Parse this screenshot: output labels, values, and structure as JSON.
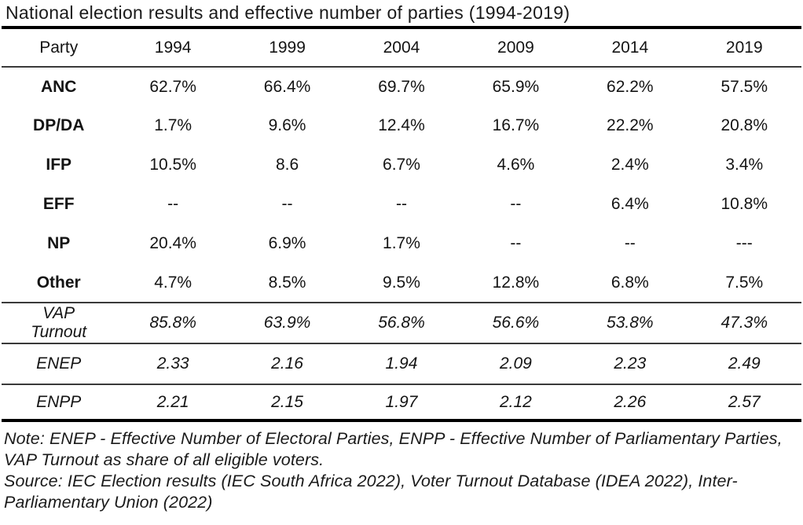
{
  "title": "National election results and effective number of parties (1994-2019)",
  "table": {
    "columns": [
      "Party",
      "1994",
      "1999",
      "2004",
      "2009",
      "2014",
      "2019"
    ],
    "party_rows": [
      {
        "label": "ANC",
        "values": [
          "62.7%",
          "66.4%",
          "69.7%",
          "65.9%",
          "62.2%",
          "57.5%"
        ]
      },
      {
        "label": "DP/DA",
        "values": [
          "1.7%",
          "9.6%",
          "12.4%",
          "16.7%",
          "22.2%",
          "20.8%"
        ]
      },
      {
        "label": "IFP",
        "values": [
          "10.5%",
          "8.6",
          "6.7%",
          "4.6%",
          "2.4%",
          "3.4%"
        ]
      },
      {
        "label": "EFF",
        "values": [
          "--",
          "--",
          "--",
          "--",
          "6.4%",
          "10.8%"
        ]
      },
      {
        "label": "NP",
        "values": [
          "20.4%",
          "6.9%",
          "1.7%",
          "--",
          "--",
          "---"
        ]
      },
      {
        "label": "Other",
        "values": [
          "4.7%",
          "8.5%",
          "9.5%",
          "12.8%",
          "6.8%",
          "7.5%"
        ]
      }
    ],
    "stat_rows": [
      {
        "label": "VAP\nTurnout",
        "values": [
          "85.8%",
          "63.9%",
          "56.8%",
          "56.6%",
          "53.8%",
          "47.3%"
        ]
      },
      {
        "label": "ENEP",
        "values": [
          "2.33",
          "2.16",
          "1.94",
          "2.09",
          "2.23",
          "2.49"
        ]
      },
      {
        "label": "ENPP",
        "values": [
          "2.21",
          "2.15",
          "1.97",
          "2.12",
          "2.26",
          "2.57"
        ]
      }
    ]
  },
  "footer": {
    "note": "Note: ENEP - Effective Number of Electoral Parties, ENPP - Effective Number of Parliamentary Parties, VAP Turnout as share of all eligible voters.",
    "source": "Source: IEC Election results (IEC South Africa 2022), Voter Turnout Database (IDEA 2022), Inter-Parliamentary Union (2022)"
  },
  "colors": {
    "text": "#141414",
    "rule_thick": "#000000",
    "rule_thin": "#3a3a3a",
    "background": "#ffffff"
  }
}
